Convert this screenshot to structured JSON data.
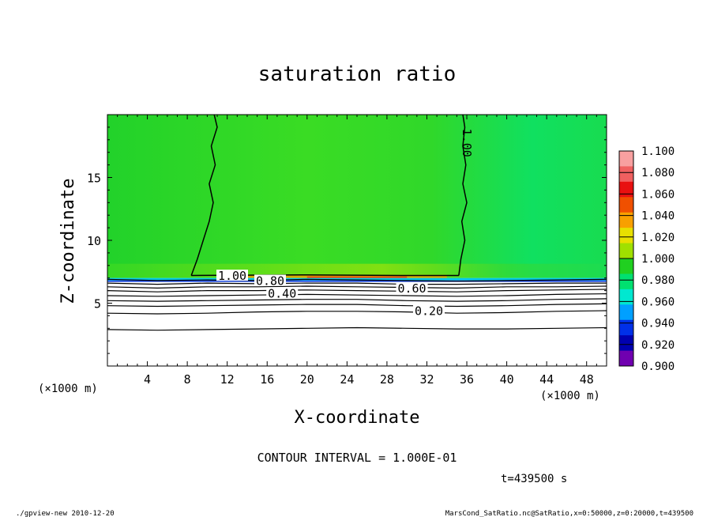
{
  "chart_data": {
    "type": "heatmap",
    "title": "saturation ratio",
    "xlabel": "X-coordinate",
    "ylabel": "Z-coordinate",
    "x_unit_left": "(×1000 m)",
    "x_unit_right": "(×1000 m)",
    "xlim": [
      0,
      50
    ],
    "ylim": [
      0,
      20
    ],
    "x_ticks": [
      4,
      8,
      12,
      16,
      20,
      24,
      28,
      32,
      36,
      40,
      44,
      48
    ],
    "y_ticks": [
      5,
      10,
      15
    ],
    "colorbar": {
      "levels": [
        1.1,
        1.08,
        1.06,
        1.04,
        1.02,
        1.0,
        0.98,
        0.96,
        0.94,
        0.92,
        0.9
      ],
      "labels": [
        "1.100",
        "1.080",
        "1.060",
        "1.040",
        "1.020",
        "1.000",
        "0.980",
        "0.960",
        "0.940",
        "0.920",
        "0.900"
      ],
      "colors": [
        "#f8a0a0",
        "#f06060",
        "#e81010",
        "#f05000",
        "#f8a000",
        "#e8e000",
        "#a0e000",
        "#20d020",
        "#00e070",
        "#00e8d0",
        "#00a0ff",
        "#0030e8",
        "#0000b0",
        "#7000b0"
      ]
    },
    "contour_labels": [
      "1.00",
      "1.00",
      "0.80",
      "0.40",
      "0.60",
      "0.20"
    ],
    "contour_interval": "CONTOUR INTERVAL = 1.000E-01",
    "time_label": "t=439500  s",
    "footer_left": "./gpview-new   2010-12-20",
    "footer_right": "MarsCond_SatRatio.nc@SatRatio,x=0:50000,z=0:20000,t=439500",
    "cloud_top_z": 7.0,
    "contours": [
      {
        "value": 0.9,
        "points": [
          [
            0,
            6.9
          ],
          [
            5,
            6.8
          ],
          [
            10,
            6.85
          ],
          [
            15,
            6.8
          ],
          [
            20,
            6.9
          ],
          [
            25,
            6.85
          ],
          [
            30,
            6.8
          ],
          [
            35,
            6.75
          ],
          [
            40,
            6.8
          ],
          [
            45,
            6.85
          ],
          [
            50,
            6.9
          ]
        ]
      },
      {
        "value": 0.8,
        "points": [
          [
            0,
            6.6
          ],
          [
            5,
            6.5
          ],
          [
            10,
            6.6
          ],
          [
            15,
            6.55
          ],
          [
            20,
            6.6
          ],
          [
            25,
            6.6
          ],
          [
            30,
            6.5
          ],
          [
            35,
            6.5
          ],
          [
            40,
            6.55
          ],
          [
            45,
            6.6
          ],
          [
            50,
            6.6
          ]
        ]
      },
      {
        "value": 0.7,
        "points": [
          [
            0,
            6.3
          ],
          [
            5,
            6.2
          ],
          [
            10,
            6.3
          ],
          [
            15,
            6.3
          ],
          [
            20,
            6.35
          ],
          [
            25,
            6.3
          ],
          [
            30,
            6.25
          ],
          [
            35,
            6.2
          ],
          [
            40,
            6.3
          ],
          [
            45,
            6.3
          ],
          [
            50,
            6.35
          ]
        ]
      },
      {
        "value": 0.6,
        "points": [
          [
            0,
            6.0
          ],
          [
            5,
            5.9
          ],
          [
            10,
            6.0
          ],
          [
            15,
            6.0
          ],
          [
            20,
            6.05
          ],
          [
            25,
            6.0
          ],
          [
            30,
            5.95
          ],
          [
            35,
            5.9
          ],
          [
            40,
            6.0
          ],
          [
            45,
            6.05
          ],
          [
            50,
            6.1
          ]
        ]
      },
      {
        "value": 0.5,
        "points": [
          [
            0,
            5.6
          ],
          [
            5,
            5.55
          ],
          [
            10,
            5.6
          ],
          [
            15,
            5.65
          ],
          [
            20,
            5.7
          ],
          [
            25,
            5.65
          ],
          [
            30,
            5.6
          ],
          [
            35,
            5.55
          ],
          [
            40,
            5.6
          ],
          [
            45,
            5.7
          ],
          [
            50,
            5.75
          ]
        ]
      },
      {
        "value": 0.4,
        "points": [
          [
            0,
            5.2
          ],
          [
            5,
            5.15
          ],
          [
            10,
            5.2
          ],
          [
            15,
            5.25
          ],
          [
            20,
            5.3
          ],
          [
            25,
            5.3
          ],
          [
            30,
            5.2
          ],
          [
            35,
            5.15
          ],
          [
            40,
            5.2
          ],
          [
            45,
            5.3
          ],
          [
            50,
            5.35
          ]
        ]
      },
      {
        "value": 0.3,
        "points": [
          [
            0,
            4.8
          ],
          [
            5,
            4.75
          ],
          [
            10,
            4.8
          ],
          [
            15,
            4.85
          ],
          [
            20,
            4.9
          ],
          [
            25,
            4.9
          ],
          [
            30,
            4.8
          ],
          [
            35,
            4.75
          ],
          [
            40,
            4.8
          ],
          [
            45,
            4.9
          ],
          [
            50,
            4.95
          ]
        ]
      },
      {
        "value": 0.2,
        "points": [
          [
            0,
            4.2
          ],
          [
            5,
            4.15
          ],
          [
            10,
            4.2
          ],
          [
            15,
            4.3
          ],
          [
            20,
            4.35
          ],
          [
            25,
            4.35
          ],
          [
            30,
            4.3
          ],
          [
            35,
            4.2
          ],
          [
            40,
            4.25
          ],
          [
            45,
            4.35
          ],
          [
            50,
            4.4
          ]
        ]
      },
      {
        "value": 0.1,
        "points": [
          [
            0,
            2.9
          ],
          [
            5,
            2.85
          ],
          [
            10,
            2.9
          ],
          [
            15,
            2.95
          ],
          [
            20,
            3.0
          ],
          [
            25,
            3.05
          ],
          [
            30,
            3.0
          ],
          [
            35,
            2.95
          ],
          [
            40,
            2.95
          ],
          [
            45,
            3.0
          ],
          [
            50,
            3.05
          ]
        ]
      },
      {
        "value": 1.0,
        "points": [
          [
            8.4,
            7.2
          ],
          [
            9.0,
            8.5
          ],
          [
            9.6,
            10
          ],
          [
            10.2,
            11.5
          ],
          [
            10.6,
            13
          ],
          [
            10.2,
            14.5
          ],
          [
            10.8,
            16
          ],
          [
            10.4,
            17.5
          ],
          [
            11.0,
            19
          ],
          [
            10.7,
            20
          ]
        ]
      },
      {
        "value": 1.0,
        "points": [
          [
            35.2,
            7.2
          ],
          [
            35.4,
            8.5
          ],
          [
            35.8,
            10
          ],
          [
            35.5,
            11.5
          ],
          [
            36.0,
            13
          ],
          [
            35.6,
            14.5
          ],
          [
            35.9,
            16
          ],
          [
            35.6,
            17.5
          ],
          [
            35.8,
            19
          ],
          [
            35.6,
            20
          ]
        ]
      },
      {
        "value": 1.0,
        "points": [
          [
            8.4,
            7.2
          ],
          [
            20,
            7.25
          ],
          [
            30,
            7.2
          ],
          [
            35.2,
            7.2
          ]
        ]
      }
    ]
  }
}
